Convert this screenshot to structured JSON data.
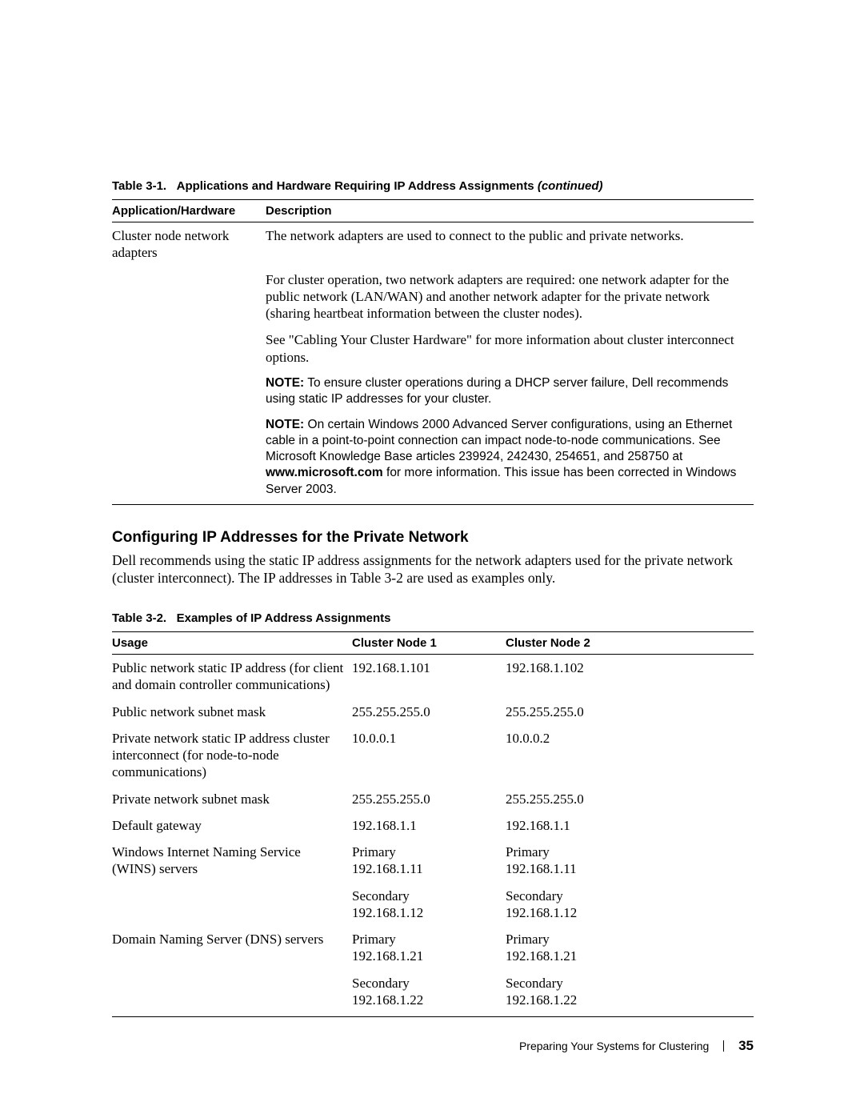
{
  "table31": {
    "caption_prefix": "Table 3-1.",
    "caption_text": "Applications and Hardware Requiring IP Address Assignments",
    "caption_suffix": "(continued)",
    "headers": [
      "Application/Hardware",
      "Description"
    ],
    "row_label": "Cluster node network adapters",
    "desc1": "The network adapters are used to connect to the public and private networks.",
    "desc2": "For cluster operation, two network adapters are required: one network adapter for the public network (LAN/WAN) and another network adapter for the private network (sharing heartbeat information between the cluster nodes).",
    "desc3": "See \"Cabling Your Cluster Hardware\" for more information about cluster interconnect options.",
    "note1_label": "NOTE:",
    "note1_text": " To ensure cluster operations during a DHCP server failure, Dell recommends using static IP addresses for your cluster.",
    "note2_label": "NOTE:",
    "note2_text_a": " On certain Windows 2000 Advanced Server configurations, using an Ethernet cable in a point-to-point connection can impact node-to-node communications. See Microsoft Knowledge Base articles 239924, 242430, 254651, and 258750 at ",
    "note2_bold": "www.microsoft.com",
    "note2_text_b": " for more information. This issue has been corrected in Windows Server 2003."
  },
  "section_heading": "Configuring IP Addresses for the Private Network",
  "body_para": "Dell recommends using the static IP address assignments for the network adapters used for the private network (cluster interconnect). The IP addresses in Table 3-2 are used as examples only.",
  "table32": {
    "caption_prefix": "Table 3-2.",
    "caption_text": "Examples of IP Address Assignments",
    "headers": [
      "Usage",
      "Cluster Node 1",
      "Cluster Node 2"
    ],
    "rows": [
      {
        "u": "Public network static IP address (for client and domain controller communications)",
        "n1": "192.168.1.101",
        "n2": "192.168.1.102"
      },
      {
        "u": "Public network subnet mask",
        "n1": "255.255.255.0",
        "n2": "255.255.255.0"
      },
      {
        "u": "Private network static IP address cluster interconnect (for node-to-node communications)",
        "n1": "10.0.0.1",
        "n2": "10.0.0.2"
      },
      {
        "u": "Private network subnet mask",
        "n1": "255.255.255.0",
        "n2": "255.255.255.0"
      },
      {
        "u": "Default gateway",
        "n1": "192.168.1.1",
        "n2": "192.168.1.1"
      }
    ],
    "wins": {
      "u": "Windows Internet Naming Service (WINS) servers",
      "n1a": "Primary",
      "n1b": "192.168.1.11",
      "n2a": "Primary",
      "n2b": "192.168.1.11",
      "s1a": "Secondary",
      "s1b": "192.168.1.12",
      "s2a": "Secondary",
      "s2b": "192.168.1.12"
    },
    "dns": {
      "u": "Domain Naming Server (DNS) servers",
      "n1a": "Primary",
      "n1b": "192.168.1.21",
      "n2a": "Primary",
      "n2b": "192.168.1.21",
      "s1a": "Secondary",
      "s1b": "192.168.1.22",
      "s2a": "Secondary",
      "s2b": "192.168.1.22"
    }
  },
  "footer": {
    "section": "Preparing Your Systems for Clustering",
    "page": "35"
  }
}
